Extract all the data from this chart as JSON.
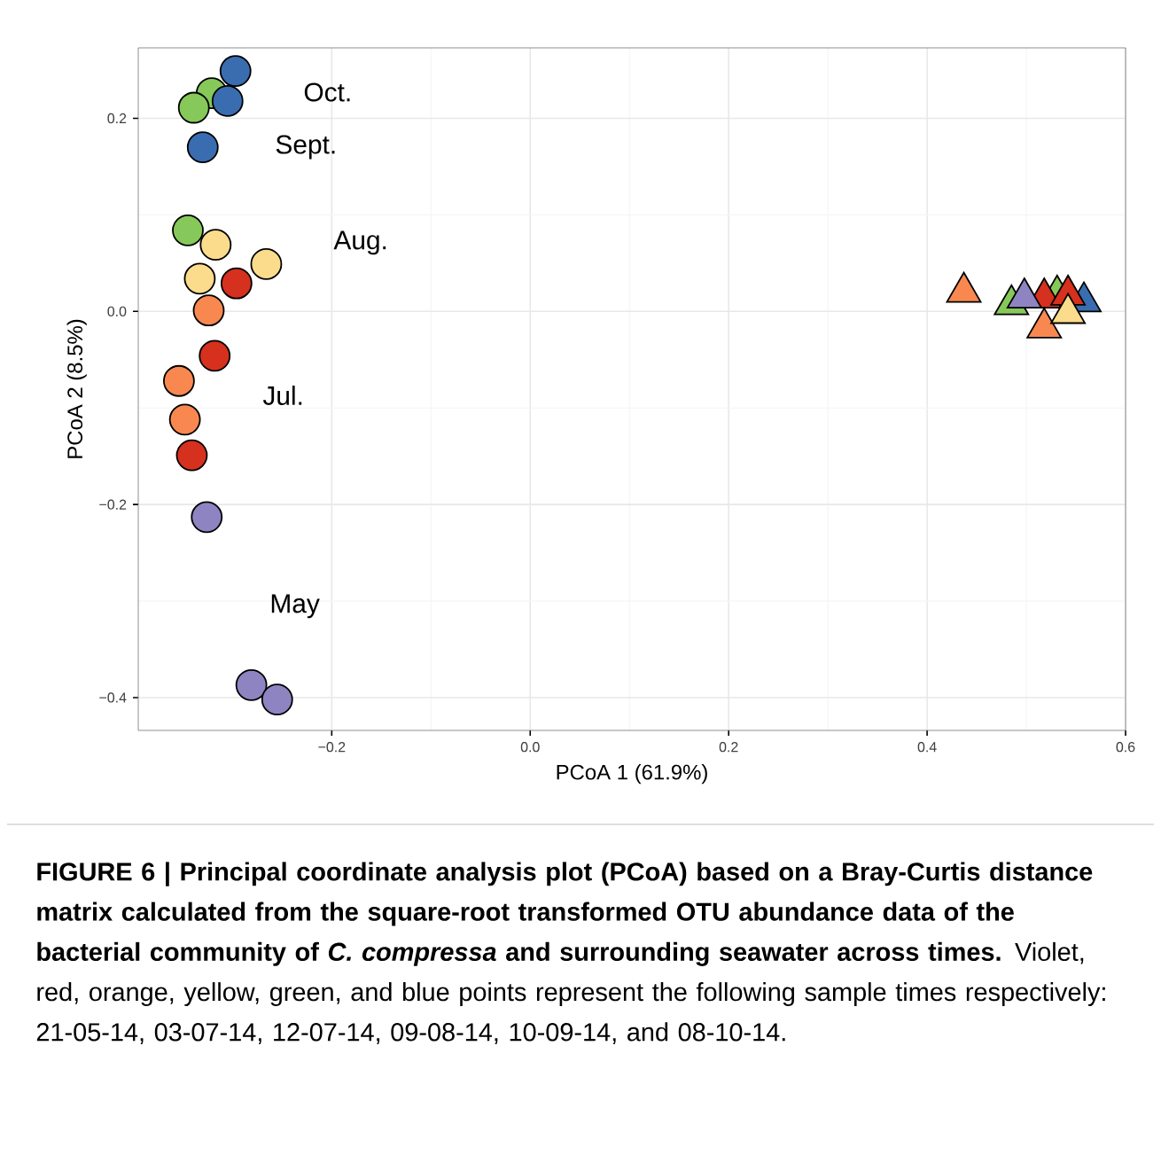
{
  "chart_data": {
    "type": "scatter",
    "xlabel": "PCoA 1   (61.9%)",
    "ylabel": "PCoA 2   (8.5%)",
    "xlim": [
      -0.395,
      0.6
    ],
    "ylim": [
      -0.434,
      0.273
    ],
    "xticks": [
      {
        "value": -0.2,
        "label": "−0.2"
      },
      {
        "value": 0,
        "label": "0.0"
      },
      0.2,
      0.4,
      0.6
    ],
    "yticks": [
      {
        "value": -0.4,
        "label": "−0.4"
      },
      {
        "value": -0.2,
        "label": "−0.2"
      },
      {
        "value": 0,
        "label": "0.0"
      },
      0.2
    ],
    "grid": true,
    "series": [
      {
        "color": "#8f84c2",
        "marker": "circle",
        "x": [
          -0.326,
          -0.281,
          -0.255
        ],
        "values": [
          -0.213,
          -0.387,
          -0.402
        ]
      },
      {
        "color": "#d6301e",
        "marker": "circle",
        "x": [
          -0.296,
          -0.318,
          -0.341
        ],
        "values": [
          0.029,
          -0.046,
          -0.149
        ]
      },
      {
        "color": "#f98850",
        "marker": "circle",
        "x": [
          -0.324,
          -0.354,
          -0.348
        ],
        "values": [
          0.001,
          -0.072,
          -0.112
        ]
      },
      {
        "color": "#fbdc8c",
        "marker": "circle",
        "x": [
          -0.317,
          -0.333,
          -0.266
        ],
        "values": [
          0.069,
          0.034,
          0.049
        ]
      },
      {
        "color": "#86c95a",
        "marker": "circle",
        "x": [
          -0.321,
          -0.339,
          -0.345
        ],
        "values": [
          0.226,
          0.211,
          0.084
        ]
      },
      {
        "color": "#3a6db0",
        "marker": "circle",
        "x": [
          -0.297,
          -0.305,
          -0.33
        ],
        "values": [
          0.249,
          0.218,
          0.17
        ]
      },
      {
        "color": "#86c95a",
        "marker": "triangle",
        "x": [
          0.485,
          0.531
        ],
        "values": [
          0.007,
          0.017
        ]
      },
      {
        "color": "#3a6db0",
        "marker": "triangle",
        "x": [
          0.558
        ],
        "values": [
          0.01
        ]
      },
      {
        "color": "#d6301e",
        "marker": "triangle",
        "x": [
          0.518,
          0.542
        ],
        "values": [
          0.014,
          0.017
        ]
      },
      {
        "color": "#8f84c2",
        "marker": "triangle",
        "x": [
          0.498
        ],
        "values": [
          0.014
        ]
      },
      {
        "color": "#f98850",
        "marker": "triangle",
        "x": [
          0.437,
          0.518
        ],
        "values": [
          0.02,
          -0.017
        ]
      },
      {
        "color": "#fbdc8c",
        "marker": "triangle",
        "x": [
          0.542
        ],
        "values": [
          -0.002
        ]
      }
    ],
    "annotations": [
      "Oct.",
      "Sept.",
      "Aug.",
      "Jul.",
      "May",
      "FIGURE 6 | Principal coordinate analysis plot (PCoA) based on a Bray-Curtis distance matrix calculated from the square-root transformed OTU abundance data of the bacterial community of *C. compressa* and surrounding seawater across times.",
      "Violet, red, orange, yellow, green, and blue points represent the following sample times respectively: 21-05-14, 03-07-14, 12-07-14, 09-08-14, 10-09-14, and 08-10-14."
    ]
  }
}
